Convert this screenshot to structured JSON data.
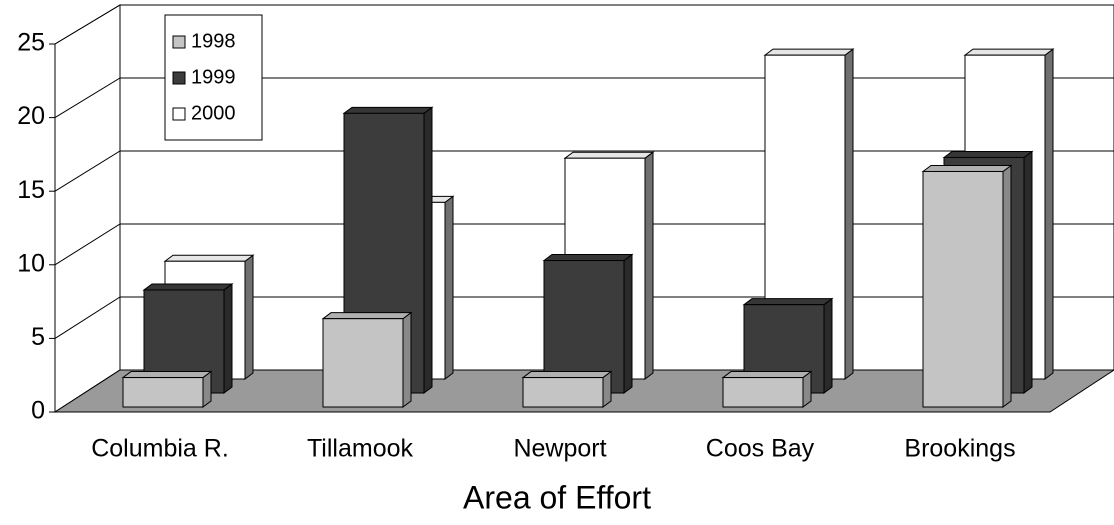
{
  "chart_data": {
    "type": "bar3d",
    "xlabel": "Area of Effort",
    "categories": [
      "Columbia R.",
      "Tillamook",
      "Newport",
      "Coos Bay",
      "Brookings"
    ],
    "series": [
      {
        "name": "1998",
        "color": "#c4c4c4",
        "values": [
          2,
          6,
          2,
          2,
          16
        ]
      },
      {
        "name": "1999",
        "color": "#3c3c3c",
        "values": [
          7,
          19,
          9,
          6,
          16
        ]
      },
      {
        "name": "2000",
        "color": "#ffffff",
        "values": [
          8,
          12,
          15,
          22,
          22
        ]
      }
    ],
    "ylim": [
      0,
      25
    ],
    "yticks": [
      0,
      5,
      10,
      15,
      20,
      25
    ],
    "grid": true,
    "legend": "upper left"
  }
}
